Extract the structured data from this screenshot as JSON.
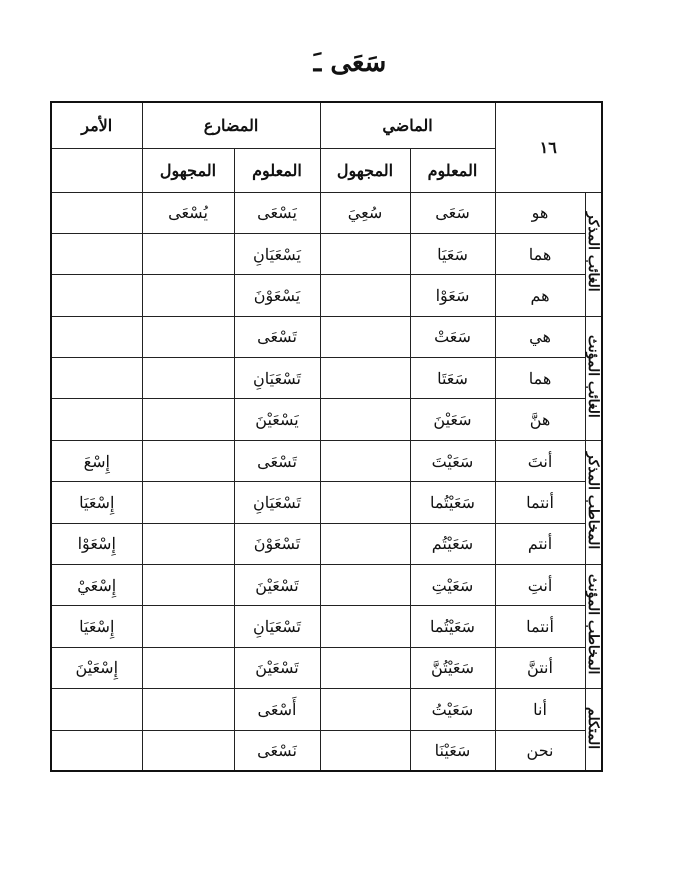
{
  "title": "سَعَى ـَ",
  "table_number": "١٦",
  "headers": {
    "past": "الماضي",
    "present": "المضارع",
    "imperative": "الأمر",
    "past_active": "المعلوم",
    "past_passive": "المجهول",
    "present_active": "المعلوم",
    "present_passive": "المجهول"
  },
  "groups": [
    "الغائب المذكر",
    "الغائب المؤنث",
    "المخاطب المذكر",
    "المخاطب المؤنث",
    "المتكلم"
  ],
  "rows": [
    {
      "pronoun": "هو",
      "past_active": "سَعَى",
      "past_passive": "سُعِيَ",
      "present_active": "يَسْعَى",
      "present_passive": "يُسْعَى",
      "imperative": ""
    },
    {
      "pronoun": "هما",
      "past_active": "سَعَيَا",
      "past_passive": "",
      "present_active": "يَسْعَيَانِ",
      "present_passive": "",
      "imperative": ""
    },
    {
      "pronoun": "هم",
      "past_active": "سَعَوْا",
      "past_passive": "",
      "present_active": "يَسْعَوْنَ",
      "present_passive": "",
      "imperative": ""
    },
    {
      "pronoun": "هي",
      "past_active": "سَعَتْ",
      "past_passive": "",
      "present_active": "تَسْعَى",
      "present_passive": "",
      "imperative": ""
    },
    {
      "pronoun": "هما",
      "past_active": "سَعَتَا",
      "past_passive": "",
      "present_active": "تَسْعَيَانِ",
      "present_passive": "",
      "imperative": ""
    },
    {
      "pronoun": "هنَّ",
      "past_active": "سَعَيْنَ",
      "past_passive": "",
      "present_active": "يَسْعَيْنَ",
      "present_passive": "",
      "imperative": ""
    },
    {
      "pronoun": "أنتَ",
      "past_active": "سَعَيْتَ",
      "past_passive": "",
      "present_active": "تَسْعَى",
      "present_passive": "",
      "imperative": "إِسْعَ"
    },
    {
      "pronoun": "أنتما",
      "past_active": "سَعَيْتُما",
      "past_passive": "",
      "present_active": "تَسْعَيَانِ",
      "present_passive": "",
      "imperative": "إِسْعَيَا"
    },
    {
      "pronoun": "أنتم",
      "past_active": "سَعَيْتُم",
      "past_passive": "",
      "present_active": "تَسْعَوْنَ",
      "present_passive": "",
      "imperative": "إِسْعَوْا"
    },
    {
      "pronoun": "أنتِ",
      "past_active": "سَعَيْتِ",
      "past_passive": "",
      "present_active": "تَسْعَيْنَ",
      "present_passive": "",
      "imperative": "إِسْعَيْ"
    },
    {
      "pronoun": "أنتما",
      "past_active": "سَعَيْتُما",
      "past_passive": "",
      "present_active": "تَسْعَيَانِ",
      "present_passive": "",
      "imperative": "إِسْعَيَا"
    },
    {
      "pronoun": "أنتنَّ",
      "past_active": "سَعَيْتُنَّ",
      "past_passive": "",
      "present_active": "تَسْعَيْنَ",
      "present_passive": "",
      "imperative": "إِسْعَيْنَ"
    },
    {
      "pronoun": "أنا",
      "past_active": "سَعَيْتُ",
      "past_passive": "",
      "present_active": "أَسْعَى",
      "present_passive": "",
      "imperative": ""
    },
    {
      "pronoun": "نحن",
      "past_active": "سَعَيْنَا",
      "past_passive": "",
      "present_active": "نَسْعَى",
      "present_passive": "",
      "imperative": ""
    }
  ]
}
